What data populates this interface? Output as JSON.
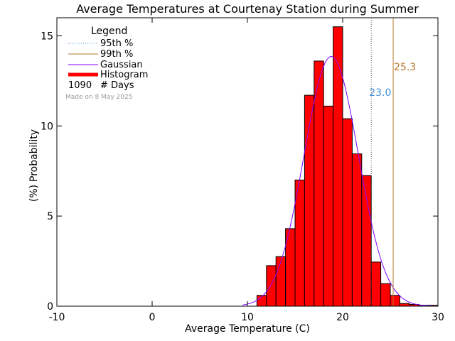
{
  "chart_data": {
    "type": "bar",
    "title": "Average Temperatures at Courtenay Station during Summer",
    "xlabel": "Average Temperature (C)",
    "ylabel_line1": "Probability",
    "ylabel_line2": "(%)",
    "xlim": [
      -10,
      30
    ],
    "ylim": [
      0,
      16
    ],
    "xticks": [
      -10,
      0,
      10,
      20,
      30
    ],
    "yticks": [
      0,
      5,
      10,
      15
    ],
    "bin_width": 1,
    "histogram": {
      "name": "Histogram",
      "color": "#ff0000",
      "bin_starts": [
        11,
        12,
        13,
        14,
        15,
        16,
        17,
        18,
        19,
        20,
        21,
        22,
        23,
        24,
        25,
        26,
        27,
        28,
        29
      ],
      "values": [
        0.6,
        2.25,
        2.75,
        4.3,
        7.0,
        11.7,
        13.6,
        11.1,
        15.5,
        10.4,
        8.45,
        7.25,
        2.45,
        1.25,
        0.6,
        0.15,
        0.1,
        0.05,
        0.05
      ]
    },
    "gaussian": {
      "name": "Gaussian",
      "color": "#8000ff",
      "mean": 18.8,
      "sigma": 2.85,
      "peak": 13.85
    },
    "p95": {
      "name": "95th %",
      "value": 23.0,
      "label": "23.0",
      "color": "#3f8ed8"
    },
    "p99": {
      "name": "99th %",
      "value": 25.3,
      "label": "25.3",
      "color": "#b8792b"
    },
    "legend": {
      "title": "Legend",
      "position": "top-left",
      "count_value": "1090",
      "count_label": "# Days",
      "made_on": "Made on 8 May 2025"
    }
  }
}
